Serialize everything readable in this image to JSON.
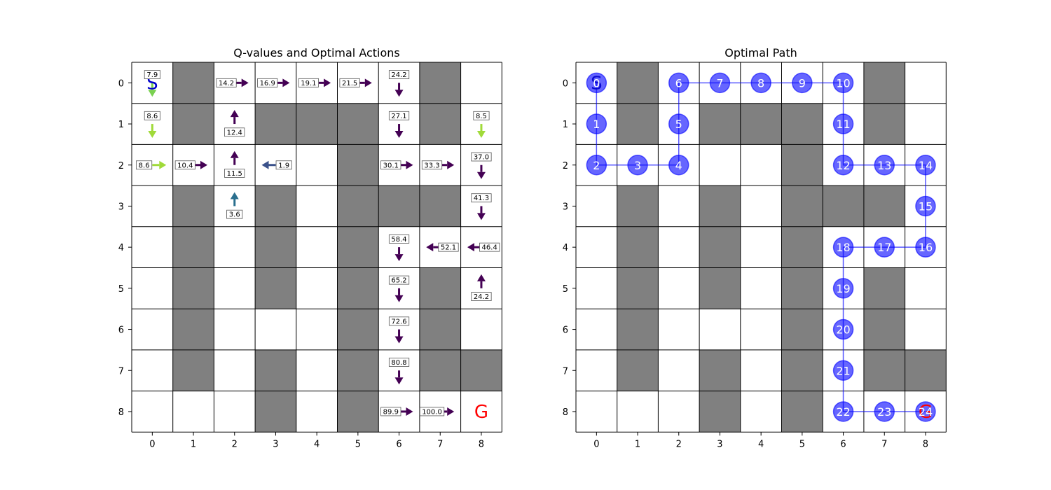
{
  "chart_data": [
    {
      "type": "heatmap",
      "title": "Q-values and Optimal Actions",
      "grid_size": 9,
      "xticks": [
        "0",
        "1",
        "2",
        "3",
        "4",
        "5",
        "6",
        "7",
        "8"
      ],
      "yticks": [
        "0",
        "1",
        "2",
        "3",
        "4",
        "5",
        "6",
        "7",
        "8"
      ],
      "walls": [
        [
          0,
          1
        ],
        [
          0,
          7
        ],
        [
          1,
          1
        ],
        [
          1,
          3
        ],
        [
          1,
          4
        ],
        [
          1,
          5
        ],
        [
          1,
          7
        ],
        [
          2,
          5
        ],
        [
          3,
          1
        ],
        [
          3,
          3
        ],
        [
          3,
          5
        ],
        [
          3,
          6
        ],
        [
          3,
          7
        ],
        [
          4,
          1
        ],
        [
          4,
          3
        ],
        [
          4,
          5
        ],
        [
          5,
          1
        ],
        [
          5,
          3
        ],
        [
          5,
          5
        ],
        [
          5,
          7
        ],
        [
          6,
          1
        ],
        [
          6,
          5
        ],
        [
          6,
          7
        ],
        [
          7,
          1
        ],
        [
          7,
          3
        ],
        [
          7,
          5
        ],
        [
          7,
          7
        ],
        [
          7,
          8
        ],
        [
          8,
          3
        ],
        [
          8,
          5
        ]
      ],
      "colors": {
        "wall": "#808080",
        "empty": "#ffffff",
        "grid": "#000000",
        "start_marker": "#0000cc",
        "goal_marker": "#ff0000"
      },
      "start": {
        "label": "S",
        "row": 0,
        "col": 0
      },
      "goal": {
        "label": "G",
        "row": 8,
        "col": 8
      },
      "q_values": [
        {
          "row": 0,
          "col": 0,
          "value": "7.9",
          "action": "down",
          "color": "#7ad151"
        },
        {
          "row": 0,
          "col": 2,
          "value": "14.2",
          "action": "right",
          "color": "#440154"
        },
        {
          "row": 0,
          "col": 3,
          "value": "16.9",
          "action": "right",
          "color": "#440154"
        },
        {
          "row": 0,
          "col": 4,
          "value": "19.1",
          "action": "right",
          "color": "#440154"
        },
        {
          "row": 0,
          "col": 5,
          "value": "21.5",
          "action": "right",
          "color": "#440154"
        },
        {
          "row": 0,
          "col": 6,
          "value": "24.2",
          "action": "down",
          "color": "#440154"
        },
        {
          "row": 1,
          "col": 0,
          "value": "8.6",
          "action": "down",
          "color": "#a0da39"
        },
        {
          "row": 1,
          "col": 2,
          "value": "12.4",
          "action": "up",
          "color": "#440154"
        },
        {
          "row": 1,
          "col": 6,
          "value": "27.1",
          "action": "down",
          "color": "#440154"
        },
        {
          "row": 1,
          "col": 8,
          "value": "8.5",
          "action": "down",
          "color": "#a0da39"
        },
        {
          "row": 2,
          "col": 0,
          "value": "8.6",
          "action": "right",
          "color": "#a0da39"
        },
        {
          "row": 2,
          "col": 1,
          "value": "10.4",
          "action": "right",
          "color": "#440154"
        },
        {
          "row": 2,
          "col": 2,
          "value": "11.5",
          "action": "up",
          "color": "#440154"
        },
        {
          "row": 2,
          "col": 3,
          "value": "1.9",
          "action": "left",
          "color": "#3b528b"
        },
        {
          "row": 2,
          "col": 6,
          "value": "30.1",
          "action": "right",
          "color": "#440154"
        },
        {
          "row": 2,
          "col": 7,
          "value": "33.3",
          "action": "right",
          "color": "#440154"
        },
        {
          "row": 2,
          "col": 8,
          "value": "37.0",
          "action": "down",
          "color": "#440154"
        },
        {
          "row": 3,
          "col": 2,
          "value": "3.6",
          "action": "up",
          "color": "#2a6f8e"
        },
        {
          "row": 3,
          "col": 8,
          "value": "41.3",
          "action": "down",
          "color": "#440154"
        },
        {
          "row": 4,
          "col": 6,
          "value": "58.4",
          "action": "down",
          "color": "#440154"
        },
        {
          "row": 4,
          "col": 7,
          "value": "52.1",
          "action": "left",
          "color": "#440154"
        },
        {
          "row": 4,
          "col": 8,
          "value": "46.4",
          "action": "left",
          "color": "#440154"
        },
        {
          "row": 5,
          "col": 6,
          "value": "65.2",
          "action": "down",
          "color": "#440154"
        },
        {
          "row": 5,
          "col": 8,
          "value": "24.2",
          "action": "up",
          "color": "#440154"
        },
        {
          "row": 6,
          "col": 6,
          "value": "72.6",
          "action": "down",
          "color": "#440154"
        },
        {
          "row": 7,
          "col": 6,
          "value": "80.8",
          "action": "down",
          "color": "#440154"
        },
        {
          "row": 8,
          "col": 6,
          "value": "89.9",
          "action": "right",
          "color": "#440154"
        },
        {
          "row": 8,
          "col": 7,
          "value": "100.0",
          "action": "right",
          "color": "#440154"
        }
      ]
    },
    {
      "type": "scatter",
      "title": "Optimal Path",
      "grid_size": 9,
      "xticks": [
        "0",
        "1",
        "2",
        "3",
        "4",
        "5",
        "6",
        "7",
        "8"
      ],
      "yticks": [
        "0",
        "1",
        "2",
        "3",
        "4",
        "5",
        "6",
        "7",
        "8"
      ],
      "walls": [
        [
          0,
          1
        ],
        [
          0,
          7
        ],
        [
          1,
          1
        ],
        [
          1,
          3
        ],
        [
          1,
          4
        ],
        [
          1,
          5
        ],
        [
          1,
          7
        ],
        [
          2,
          5
        ],
        [
          3,
          1
        ],
        [
          3,
          3
        ],
        [
          3,
          5
        ],
        [
          3,
          6
        ],
        [
          3,
          7
        ],
        [
          4,
          1
        ],
        [
          4,
          3
        ],
        [
          4,
          5
        ],
        [
          5,
          1
        ],
        [
          5,
          3
        ],
        [
          5,
          5
        ],
        [
          5,
          7
        ],
        [
          6,
          1
        ],
        [
          6,
          5
        ],
        [
          6,
          7
        ],
        [
          7,
          1
        ],
        [
          7,
          3
        ],
        [
          7,
          5
        ],
        [
          7,
          7
        ],
        [
          7,
          8
        ],
        [
          8,
          3
        ],
        [
          8,
          5
        ]
      ],
      "colors": {
        "wall": "#808080",
        "empty": "#ffffff",
        "grid": "#000000",
        "path_node": "#0000ff",
        "path_line": "#0000ff",
        "start_marker": "#0000cc",
        "goal_marker": "#ff0000"
      },
      "start": {
        "label": "S",
        "row": 0,
        "col": 0
      },
      "goal": {
        "label": "G",
        "row": 8,
        "col": 8
      },
      "path": [
        {
          "step": "0",
          "row": 0,
          "col": 0
        },
        {
          "step": "1",
          "row": 1,
          "col": 0
        },
        {
          "step": "2",
          "row": 2,
          "col": 0
        },
        {
          "step": "3",
          "row": 2,
          "col": 1
        },
        {
          "step": "4",
          "row": 2,
          "col": 2
        },
        {
          "step": "5",
          "row": 1,
          "col": 2
        },
        {
          "step": "6",
          "row": 0,
          "col": 2
        },
        {
          "step": "7",
          "row": 0,
          "col": 3
        },
        {
          "step": "8",
          "row": 0,
          "col": 4
        },
        {
          "step": "9",
          "row": 0,
          "col": 5
        },
        {
          "step": "10",
          "row": 0,
          "col": 6
        },
        {
          "step": "11",
          "row": 1,
          "col": 6
        },
        {
          "step": "12",
          "row": 2,
          "col": 6
        },
        {
          "step": "13",
          "row": 2,
          "col": 7
        },
        {
          "step": "14",
          "row": 2,
          "col": 8
        },
        {
          "step": "15",
          "row": 3,
          "col": 8
        },
        {
          "step": "16",
          "row": 4,
          "col": 8
        },
        {
          "step": "17",
          "row": 4,
          "col": 7
        },
        {
          "step": "18",
          "row": 4,
          "col": 6
        },
        {
          "step": "19",
          "row": 5,
          "col": 6
        },
        {
          "step": "20",
          "row": 6,
          "col": 6
        },
        {
          "step": "21",
          "row": 7,
          "col": 6
        },
        {
          "step": "22",
          "row": 8,
          "col": 6
        },
        {
          "step": "23",
          "row": 8,
          "col": 7
        },
        {
          "step": "24",
          "row": 8,
          "col": 8
        }
      ]
    }
  ]
}
